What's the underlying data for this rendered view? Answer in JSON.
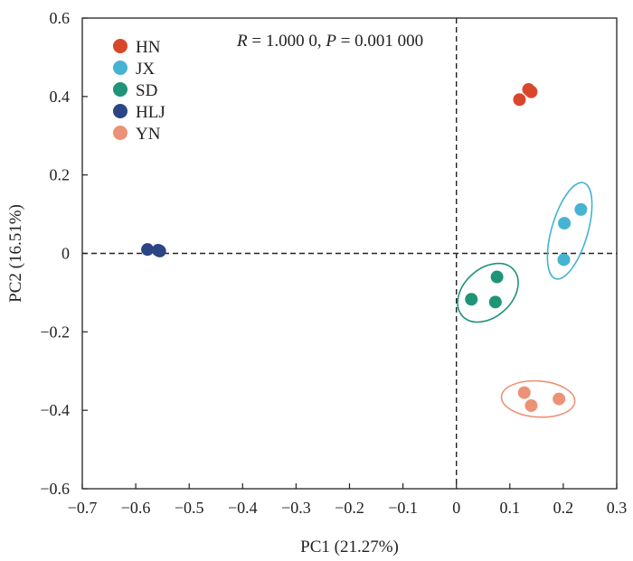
{
  "chart_data": {
    "type": "scatter",
    "xlabel": "PC1 (21.27%)",
    "ylabel": "PC2 (16.51%)",
    "xlim": [
      -0.7,
      0.3
    ],
    "ylim": [
      -0.6,
      0.6
    ],
    "x_ticks": [
      -0.7,
      -0.6,
      -0.5,
      -0.4,
      -0.3,
      -0.2,
      -0.1,
      0,
      0.1,
      0.2,
      0.3
    ],
    "x_tick_labels": [
      "−0.7",
      "−0.6",
      "−0.5",
      "−0.4",
      "−0.3",
      "−0.2",
      "−0.1",
      "0",
      "0.1",
      "0.2",
      "0.3"
    ],
    "y_ticks": [
      -0.6,
      -0.4,
      -0.2,
      0,
      0.2,
      0.4,
      0.6
    ],
    "y_tick_labels": [
      "−0.6",
      "−0.4",
      "−0.2",
      "0",
      "0.2",
      "0.4",
      "0.6"
    ],
    "annotation": {
      "R_label": "R",
      "R_value": " = 1.000 0, ",
      "P_label": "P",
      "P_value": " = 0.001 000"
    },
    "reference_lines": {
      "x": 0,
      "y": 0,
      "style": "dashed"
    },
    "legend_position": "top-left",
    "grid": false,
    "series": [
      {
        "name": "HN",
        "color": "#d9472b",
        "ellipse": false,
        "points": [
          [
            0.118,
            0.392
          ],
          [
            0.135,
            0.418
          ],
          [
            0.14,
            0.412
          ]
        ]
      },
      {
        "name": "JX",
        "color": "#45b3d1",
        "ellipse": true,
        "points": [
          [
            0.202,
            0.077
          ],
          [
            0.233,
            0.112
          ],
          [
            0.201,
            -0.016
          ]
        ]
      },
      {
        "name": "SD",
        "color": "#1f9479",
        "ellipse": true,
        "points": [
          [
            0.076,
            -0.06
          ],
          [
            0.028,
            -0.117
          ],
          [
            0.073,
            -0.124
          ]
        ]
      },
      {
        "name": "HLJ",
        "color": "#2c4585",
        "ellipse": false,
        "points": [
          [
            -0.578,
            0.01
          ],
          [
            -0.558,
            0.008
          ],
          [
            -0.555,
            0.006
          ]
        ]
      },
      {
        "name": "YN",
        "color": "#ec9276",
        "ellipse": true,
        "points": [
          [
            0.127,
            -0.355
          ],
          [
            0.14,
            -0.388
          ],
          [
            0.192,
            -0.371
          ]
        ]
      }
    ]
  }
}
